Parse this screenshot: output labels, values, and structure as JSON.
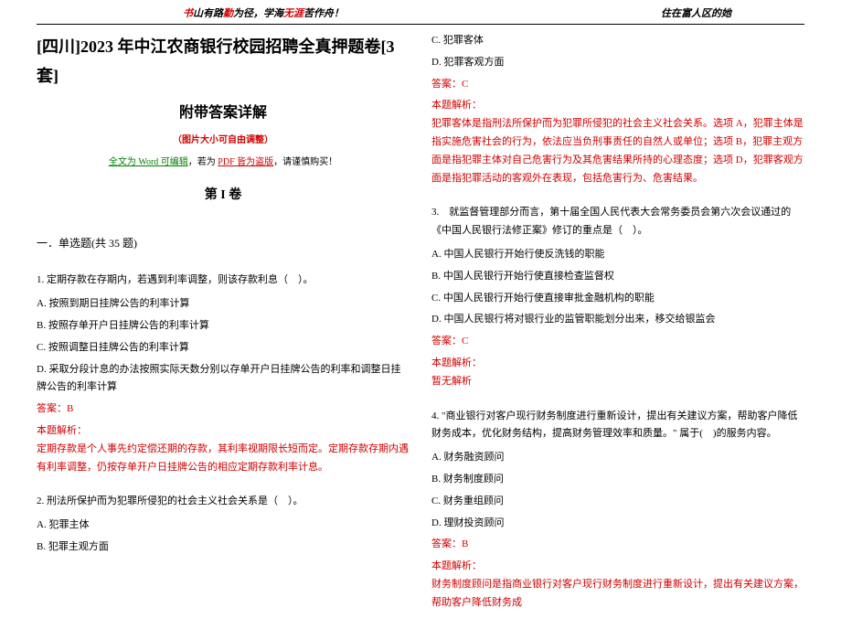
{
  "header": {
    "left_parts": [
      {
        "t": "书",
        "c": "#d00000"
      },
      {
        "t": "山有路",
        "c": "#000"
      },
      {
        "t": "勤",
        "c": "#d00000"
      },
      {
        "t": "为径，学海",
        "c": "#000"
      },
      {
        "t": "无涯",
        "c": "#d00000"
      },
      {
        "t": "苦作舟！",
        "c": "#000"
      }
    ],
    "right": "住在富人区的她"
  },
  "title": "[四川]2023 年中江农商银行校园招聘全真押题卷[3 套]",
  "subtitle": "附带答案详解",
  "note_red": "（图片大小可自由调整）",
  "note_line_pre": "全文为 Word 可编辑",
  "note_line_mid": "，若为 ",
  "note_line_pdf": "PDF 皆为盗版",
  "note_line_post": "，请谨慎购买！",
  "volume": "第 I 卷",
  "section": "一．单选题(共 35 题)",
  "q1": {
    "text": "1. 定期存款在存期内，若遇到利率调整，则该存款利息（　）。",
    "a": "A. 按照到期日挂牌公告的利率计算",
    "b": "B. 按照存单开户日挂牌公告的利率计算",
    "c": "C. 按照调整日挂牌公告的利率计算",
    "d": "D. 采取分段计息的办法按照实际天数分别以存单开户日挂牌公告的利率和调整日挂牌公告的利率计算",
    "ans": "答案：B",
    "ans_h": "本题解析：",
    "ans_body": "定期存款是个人事先约定偿还期的存款，其利率视期限长短而定。定期存款存期内遇有利率调整，仍按存单开户日挂牌公告的相应定期存款利率计息。"
  },
  "q2": {
    "text": "2. 刑法所保护而为犯罪所侵犯的社会主义社会关系是（　）。",
    "a": "A. 犯罪主体",
    "b": "B. 犯罪主观方面",
    "c": "C. 犯罪客体",
    "d": "D. 犯罪客观方面",
    "ans": "答案：C",
    "ans_h": "本题解析：",
    "ans_body": "犯罪客体是指刑法所保护而为犯罪所侵犯的社会主义社会关系。选项 A，犯罪主体是指实施危害社会的行为，依法应当负刑事责任的自然人或单位；选项 B，犯罪主观方面是指犯罪主体对自己危害行为及其危害结果所持的心理态度；选项 D，犯罪客观方面是指犯罪活动的客观外在表现，包括危害行为、危害结果。"
  },
  "q3": {
    "text": "3.　就监督管理部分而言，第十届全国人民代表大会常务委员会第六次会议通过的《中国人民银行法修正案》修订的重点是（　）。",
    "a": "A. 中国人民银行开始行使反洗钱的职能",
    "b": "B. 中国人民银行开始行使直接检查监督权",
    "c": "C. 中国人民银行开始行使直接审批金融机构的职能",
    "d": "D. 中国人民银行将对银行业的监管职能划分出来，移交给银监会",
    "ans": "答案：C",
    "ans_h": "本题解析：",
    "ans_body": "暂无解析"
  },
  "q4": {
    "text": "4. \"商业银行对客户现行财务制度进行重新设计，提出有关建议方案，帮助客户降低财务成本，优化财务结构，提高财务管理效率和质量。\" 属于(　)的服务内容。",
    "a": "A. 财务融资顾问",
    "b": "B. 财务制度顾问",
    "c": "C. 财务重组顾问",
    "d": "D. 理财投资顾问",
    "ans": "答案：B",
    "ans_h": "本题解析：",
    "ans_body": "财务制度顾问是指商业银行对客户现行财务制度进行重新设计，提出有关建议方案，帮助客户降低财务成"
  }
}
